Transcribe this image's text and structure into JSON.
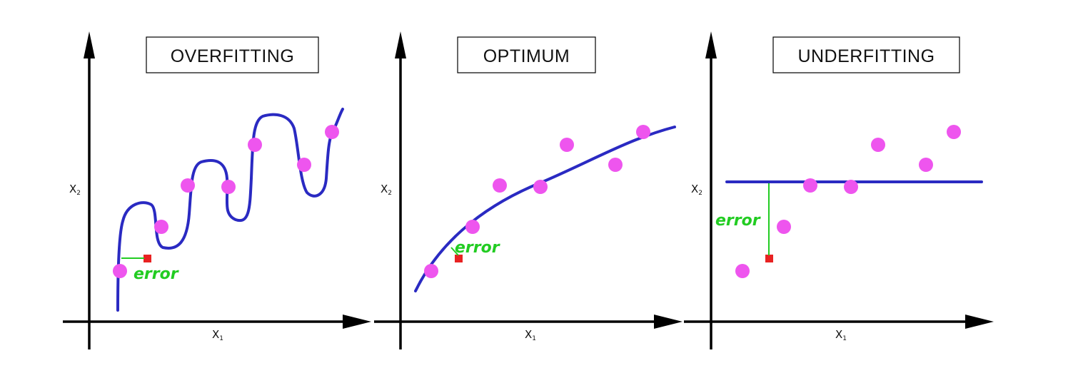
{
  "panels": [
    {
      "id": "overfitting",
      "title": "OVERFITTING",
      "x_label": "X",
      "x_sub": "1",
      "y_label": "X",
      "y_sub": "2",
      "error_label": "error"
    },
    {
      "id": "optimum",
      "title": "OPTIMUM",
      "x_label": "X",
      "x_sub": "1",
      "y_label": "X",
      "y_sub": "2",
      "error_label": "error"
    },
    {
      "id": "underfitting",
      "title": "UNDERFITTING",
      "x_label": "X",
      "x_sub": "1",
      "y_label": "X",
      "y_sub": "2",
      "error_label": "error"
    }
  ],
  "colors": {
    "curve": "#2a2ac2",
    "data_point": "#ee55ee",
    "test_point": "#e82222",
    "error": "#22cc22",
    "axis": "#000000"
  }
}
